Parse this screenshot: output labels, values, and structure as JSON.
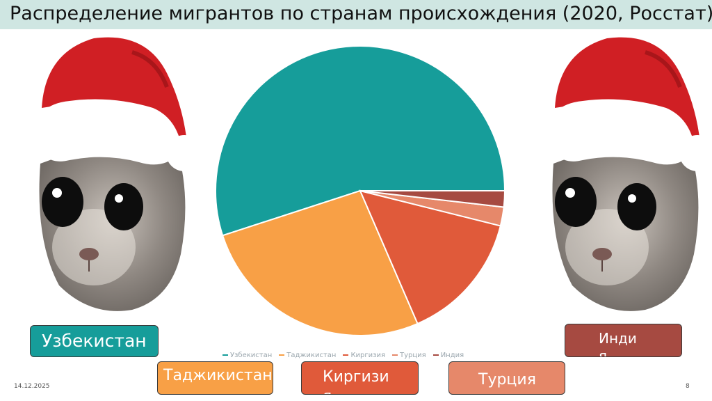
{
  "slide": {
    "title": "Распределение мигрантов по странам происхождения (2020, Росстат)",
    "date": "14.12.2025",
    "page_number": "8"
  },
  "images": {
    "left": "hamster-santa-hat-icon",
    "right": "hamster-santa-hat-icon"
  },
  "chart_data": {
    "type": "pie",
    "title": "",
    "categories": [
      "Узбекистан",
      "Таджикистан",
      "Киргизия",
      "Турция",
      "Индия"
    ],
    "values": [
      55.0,
      26.5,
      14.6,
      2.1,
      1.8
    ],
    "colors": [
      "#169d9a",
      "#f8a046",
      "#e05a3a",
      "#e6886a",
      "#a64a41"
    ],
    "legend": "bottom"
  },
  "labels": {
    "uz": "Узбекистан",
    "tj": "Таджикистан",
    "kg": "Киргизия",
    "tr": "Турция",
    "in": "Индия"
  }
}
